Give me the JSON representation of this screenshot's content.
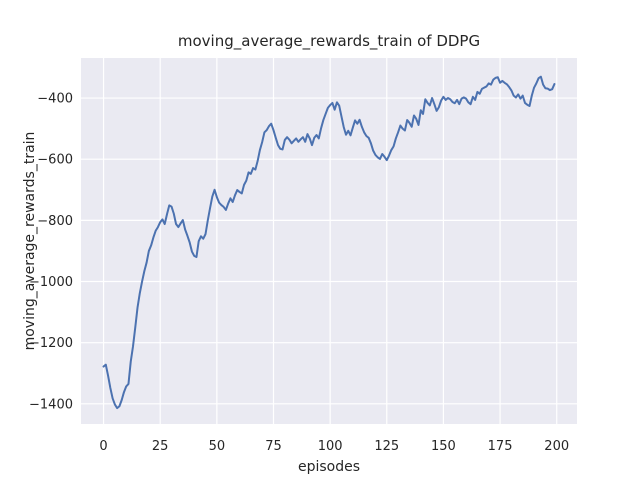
{
  "chart_data": {
    "type": "line",
    "title": "moving_average_rewards_train of DDPG",
    "xlabel": "episodes",
    "ylabel": "moving_average_rewards_train",
    "x_ticks": [
      0,
      25,
      50,
      75,
      100,
      125,
      150,
      175,
      200
    ],
    "y_ticks": [
      -400,
      -600,
      -800,
      -1000,
      -1200,
      -1400
    ],
    "xlim": [
      -9.95,
      208.95
    ],
    "ylim": [
      -1466,
      -269
    ],
    "grid": true,
    "legend": "none",
    "style": {
      "figure_bg": "#ffffff",
      "plot_bg": "#eaeaf2",
      "grid_color": "#ffffff",
      "line_color": "#4c72b0",
      "text_color": "#262626"
    },
    "series": [
      {
        "name": "moving_average_rewards_train",
        "color": "#4c72b0",
        "x_start": 0,
        "x_step": 1,
        "y": [
          -1278,
          -1272,
          -1308,
          -1348,
          -1382,
          -1402,
          -1414,
          -1408,
          -1388,
          -1362,
          -1343,
          -1335,
          -1262,
          -1212,
          -1150,
          -1085,
          -1038,
          -1000,
          -966,
          -938,
          -900,
          -882,
          -856,
          -834,
          -822,
          -806,
          -797,
          -812,
          -780,
          -751,
          -755,
          -778,
          -812,
          -822,
          -810,
          -799,
          -830,
          -850,
          -872,
          -902,
          -916,
          -920,
          -868,
          -852,
          -860,
          -845,
          -800,
          -760,
          -722,
          -700,
          -724,
          -742,
          -750,
          -756,
          -766,
          -745,
          -728,
          -740,
          -718,
          -701,
          -707,
          -712,
          -684,
          -670,
          -643,
          -648,
          -629,
          -634,
          -606,
          -570,
          -544,
          -512,
          -505,
          -492,
          -484,
          -505,
          -530,
          -554,
          -566,
          -568,
          -537,
          -528,
          -536,
          -548,
          -540,
          -532,
          -543,
          -535,
          -528,
          -543,
          -518,
          -532,
          -554,
          -530,
          -521,
          -532,
          -499,
          -472,
          -452,
          -432,
          -423,
          -416,
          -438,
          -414,
          -425,
          -460,
          -495,
          -520,
          -507,
          -522,
          -497,
          -473,
          -484,
          -471,
          -494,
          -512,
          -524,
          -530,
          -548,
          -572,
          -586,
          -594,
          -599,
          -583,
          -592,
          -603,
          -588,
          -570,
          -558,
          -532,
          -512,
          -490,
          -500,
          -506,
          -472,
          -481,
          -494,
          -457,
          -468,
          -488,
          -440,
          -452,
          -404,
          -416,
          -424,
          -400,
          -420,
          -442,
          -430,
          -408,
          -396,
          -406,
          -400,
          -404,
          -413,
          -417,
          -406,
          -420,
          -402,
          -398,
          -402,
          -414,
          -420,
          -396,
          -406,
          -380,
          -386,
          -370,
          -366,
          -362,
          -352,
          -356,
          -340,
          -334,
          -332,
          -350,
          -344,
          -350,
          -355,
          -364,
          -375,
          -392,
          -398,
          -388,
          -402,
          -392,
          -416,
          -422,
          -426,
          -392,
          -366,
          -352,
          -335,
          -330,
          -356,
          -368,
          -369,
          -374,
          -371,
          -354
        ]
      }
    ]
  }
}
